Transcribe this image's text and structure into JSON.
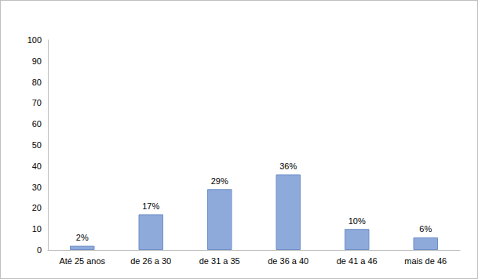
{
  "chart_data": {
    "type": "bar",
    "categories": [
      "Até 25 anos",
      "de 26 a 30",
      "de 31 a 35",
      "de 36 a 40",
      "de 41 a 46",
      "mais de 46"
    ],
    "values": [
      2,
      17,
      29,
      36,
      10,
      6
    ],
    "value_labels": [
      "2%",
      "17%",
      "29%",
      "36%",
      "10%",
      "6%"
    ],
    "color": "#8eaadb",
    "ylim": [
      0,
      100
    ],
    "yticks": [
      0,
      10,
      20,
      30,
      40,
      50,
      60,
      70,
      80,
      90,
      100
    ],
    "grid": false,
    "data_labels": true
  }
}
